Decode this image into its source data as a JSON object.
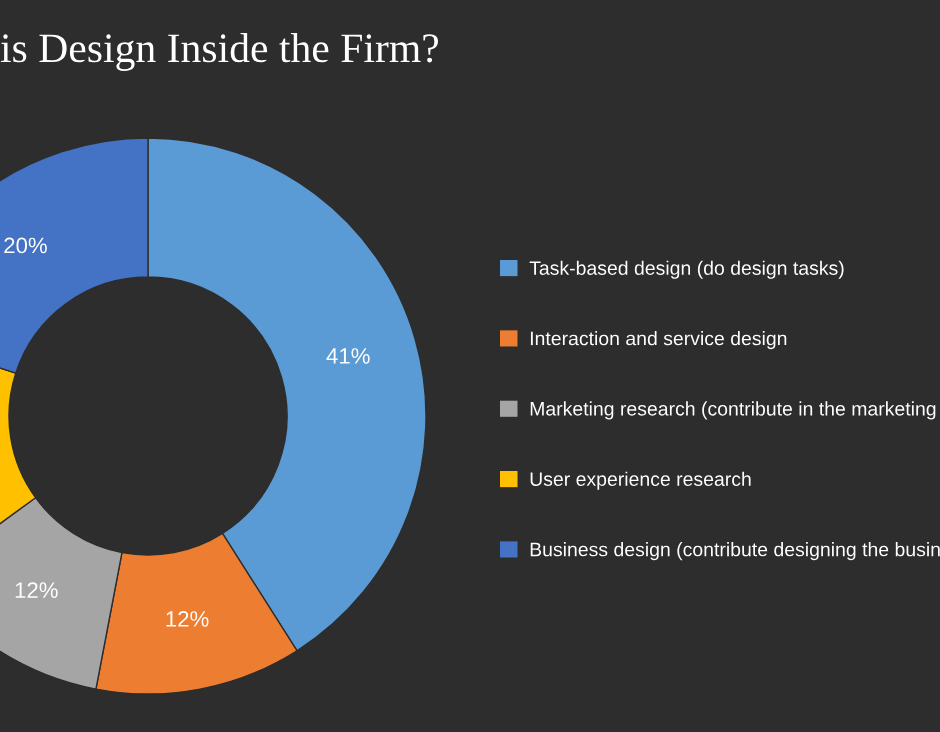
{
  "chart_data": {
    "type": "donut",
    "title": "is Design Inside the Firm?",
    "categories": [
      "Task-based design (do design tasks)",
      "Interaction and service design",
      "Marketing research (contribute in the marketing",
      "User experience research",
      "Business design (contribute designing the busin"
    ],
    "values": [
      41,
      12,
      12,
      15,
      20
    ],
    "colors": [
      "#5b9bd5",
      "#ed7d31",
      "#a5a5a5",
      "#ffc000",
      "#4472c4"
    ],
    "value_labels": [
      "41%",
      "12%",
      "12%",
      null,
      "20%"
    ],
    "legend": "right"
  }
}
